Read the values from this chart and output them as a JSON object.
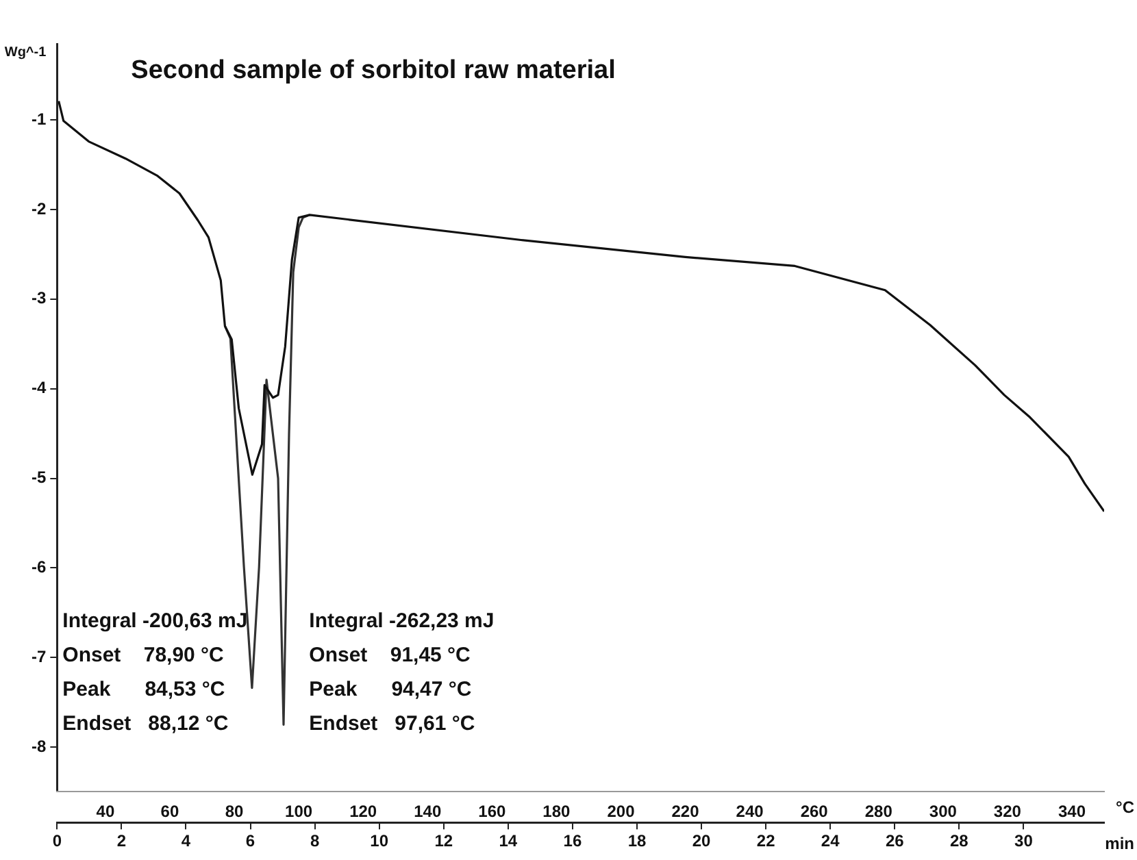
{
  "chart_data": {
    "type": "line",
    "title": "Second sample of sorbitol raw material",
    "xlabel": "min",
    "x2label": "°C",
    "ylabel": "Wg^-1",
    "xlim": [
      0,
      32.5
    ],
    "xticks": [
      0,
      2,
      4,
      6,
      8,
      10,
      12,
      14,
      16,
      18,
      20,
      22,
      24,
      26,
      28,
      30
    ],
    "x2lim": [
      25,
      350
    ],
    "x2ticks": [
      40,
      60,
      80,
      100,
      120,
      140,
      160,
      180,
      200,
      220,
      240,
      260,
      280,
      300,
      320,
      340
    ],
    "ylim": [
      -8.5,
      -0.15
    ],
    "yticks": [
      -8,
      -7,
      -6,
      -5,
      -4,
      -3,
      -2,
      -1
    ],
    "grid": false,
    "legend": false,
    "marker": "none",
    "line_style": "solid",
    "series": [
      {
        "color": "#111111",
        "x": [
          0.05,
          0.2,
          0.98,
          2.12,
          3.1,
          3.8,
          4.37,
          4.7,
          5.08,
          5.21,
          5.42,
          5.64,
          6.06,
          6.36,
          6.44,
          6.7,
          6.86,
          7.08,
          7.29,
          7.5,
          7.84,
          14.4,
          19.5,
          22.9,
          25.7,
          27.1,
          28.5,
          29.4,
          30.2,
          31.4,
          31.9,
          32.5
        ],
        "values": [
          -0.79,
          -1.01,
          -1.24,
          -1.43,
          -1.62,
          -1.82,
          -2.12,
          -2.31,
          -2.79,
          -3.3,
          -3.45,
          -4.22,
          -4.96,
          -4.62,
          -3.96,
          -4.1,
          -4.07,
          -3.53,
          -2.56,
          -2.09,
          -2.06,
          -2.34,
          -2.53,
          -2.63,
          -2.9,
          -3.29,
          -3.74,
          -4.07,
          -4.32,
          -4.76,
          -5.06,
          -5.37
        ]
      },
      {
        "color": "#333333",
        "x": [
          5.21,
          5.38,
          5.8,
          6.05,
          6.27,
          6.5,
          6.86,
          7.03,
          7.2,
          7.33,
          7.5,
          7.63,
          7.84
        ],
        "values": [
          -3.3,
          -3.44,
          -5.99,
          -7.34,
          -5.99,
          -3.9,
          -5.0,
          -7.75,
          -4.5,
          -2.7,
          -2.2,
          -2.09,
          -2.06
        ]
      }
    ],
    "annotations": [
      "Integral -200,63 mJ",
      "Onset    78,90 °C",
      "Peak      84,53 °C",
      "Endset   88,12 °C",
      "Integral -262,23 mJ",
      "Onset    91,45 °C",
      "Peak      94,47 °C",
      "Endset   97,61 °C"
    ]
  }
}
